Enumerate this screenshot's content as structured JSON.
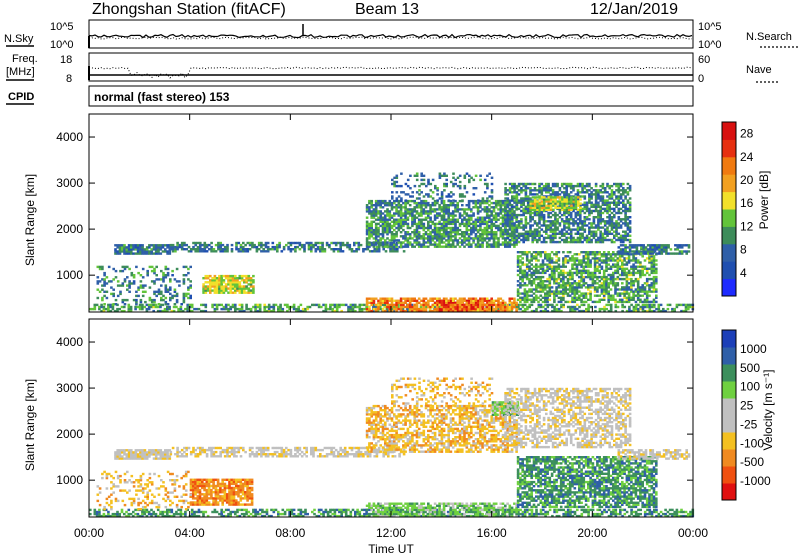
{
  "header": {
    "station": "Zhongshan Station (fitACF)",
    "beam": "Beam 13",
    "date": "12/Jan/2019"
  },
  "top_panels": {
    "nsky_label": "N.Sky",
    "nsky_ticks": [
      "10^5",
      "10^0"
    ],
    "nsearch_label": "N.Search",
    "nsearch_ticks": [
      "10^5",
      "10^0"
    ],
    "freq_label_1": "Freq.",
    "freq_label_2": "[MHz]",
    "freq_ticks": [
      "18",
      "8"
    ],
    "nave_label": "Nave",
    "nave_ticks": [
      "60",
      "0"
    ],
    "cpid_label": "CPID",
    "cpid_text": "normal (fast stereo) 153"
  },
  "colors": {
    "power": [
      "#1e2bff",
      "#1f4fb0",
      "#2f5fa8",
      "#3d8c5a",
      "#62c43a",
      "#f2e02a",
      "#f2a020",
      "#f07a10",
      "#e63010",
      "#d81010"
    ],
    "velocity": [
      "#e01010",
      "#f05010",
      "#f08a20",
      "#f4c020",
      "#c0c0c0",
      "#c0c0c0",
      "#6fd040",
      "#3c8f5c",
      "#2f5fa8",
      "#1c3fb8"
    ]
  },
  "chart_data": [
    {
      "type": "heatmap",
      "name": "power",
      "ylabel": "Slant Range [km]",
      "yticks": [
        "1000",
        "2000",
        "3000",
        "4000"
      ],
      "ylim": [
        200,
        4500
      ],
      "xlim": [
        0,
        24
      ],
      "colorbar_label": "Power [dB]",
      "colorbar_ticks": [
        "4",
        "8",
        "12",
        "16",
        "20",
        "24",
        "28"
      ],
      "colorbar_range": [
        0,
        30
      ],
      "regions": [
        {
          "t0": 0.0,
          "t1": 24.0,
          "r0": 200,
          "r1": 350,
          "v": 10,
          "d": 0.55
        },
        {
          "t0": 1.0,
          "t1": 3.2,
          "r0": 1450,
          "r1": 1650,
          "v": 7,
          "d": 0.85
        },
        {
          "t0": 3.2,
          "t1": 12.5,
          "r0": 1500,
          "r1": 1700,
          "v": 7,
          "d": 0.6
        },
        {
          "t0": 4.5,
          "t1": 6.5,
          "r0": 600,
          "r1": 1000,
          "v": 14,
          "d": 0.8
        },
        {
          "t0": 0.3,
          "t1": 4.0,
          "r0": 350,
          "r1": 1200,
          "v": 8,
          "d": 0.25
        },
        {
          "t0": 11.0,
          "t1": 17.0,
          "r0": 1600,
          "r1": 2600,
          "v": 9,
          "d": 0.7
        },
        {
          "t0": 12.0,
          "t1": 16.0,
          "r0": 2600,
          "r1": 3200,
          "v": 7,
          "d": 0.25
        },
        {
          "t0": 13.8,
          "t1": 16.0,
          "r0": 200,
          "r1": 450,
          "v": 28,
          "d": 0.9
        },
        {
          "t0": 11.0,
          "t1": 17.0,
          "r0": 200,
          "r1": 500,
          "v": 20,
          "d": 0.7
        },
        {
          "t0": 16.5,
          "t1": 21.5,
          "r0": 1700,
          "r1": 3000,
          "v": 8,
          "d": 0.65
        },
        {
          "t0": 17.5,
          "t1": 19.5,
          "r0": 2400,
          "r1": 2700,
          "v": 14,
          "d": 0.8
        },
        {
          "t0": 17.0,
          "t1": 22.5,
          "r0": 400,
          "r1": 1500,
          "v": 10,
          "d": 0.65
        },
        {
          "t0": 21.0,
          "t1": 23.8,
          "r0": 1450,
          "r1": 1650,
          "v": 7,
          "d": 0.7
        }
      ]
    },
    {
      "type": "heatmap",
      "name": "velocity",
      "ylabel": "Slant Range [km]",
      "yticks": [
        "1000",
        "2000",
        "3000",
        "4000"
      ],
      "ylim": [
        200,
        4500
      ],
      "xlim": [
        0,
        24
      ],
      "xticks": [
        "00:00",
        "04:00",
        "08:00",
        "12:00",
        "16:00",
        "20:00",
        "00:00"
      ],
      "xlabel": "Time UT",
      "colorbar_label": "Velocity [m s⁻¹]",
      "colorbar_ticks": [
        "1000",
        "500",
        "100",
        "25",
        "-25",
        "-100",
        "-500",
        "-1000"
      ],
      "regions": [
        {
          "t0": 0.0,
          "t1": 24.0,
          "r0": 200,
          "r1": 350,
          "v": 7,
          "d": 0.55
        },
        {
          "t0": 1.0,
          "t1": 3.2,
          "r0": 1450,
          "r1": 1650,
          "v": 4,
          "d": 0.85
        },
        {
          "t0": 3.2,
          "t1": 12.5,
          "r0": 1500,
          "r1": 1700,
          "v": 4,
          "d": 0.6
        },
        {
          "t0": 4.0,
          "t1": 6.5,
          "r0": 450,
          "r1": 1000,
          "v": 2,
          "d": 0.8
        },
        {
          "t0": 0.3,
          "t1": 4.0,
          "r0": 350,
          "r1": 1200,
          "v": 3,
          "d": 0.25
        },
        {
          "t0": 11.0,
          "t1": 17.0,
          "r0": 1600,
          "r1": 2600,
          "v": 3,
          "d": 0.6
        },
        {
          "t0": 12.0,
          "t1": 16.0,
          "r0": 2600,
          "r1": 3200,
          "v": 3,
          "d": 0.25
        },
        {
          "t0": 16.0,
          "t1": 17.0,
          "r0": 2400,
          "r1": 2700,
          "v": 6,
          "d": 0.8
        },
        {
          "t0": 11.0,
          "t1": 17.0,
          "r0": 200,
          "r1": 500,
          "v": 6,
          "d": 0.7
        },
        {
          "t0": 16.5,
          "t1": 21.5,
          "r0": 1700,
          "r1": 3000,
          "v": 4,
          "d": 0.55
        },
        {
          "t0": 17.0,
          "t1": 22.5,
          "r0": 400,
          "r1": 1500,
          "v": 7,
          "d": 0.7
        },
        {
          "t0": 21.0,
          "t1": 23.8,
          "r0": 1450,
          "r1": 1650,
          "v": 4,
          "d": 0.7
        }
      ]
    }
  ]
}
